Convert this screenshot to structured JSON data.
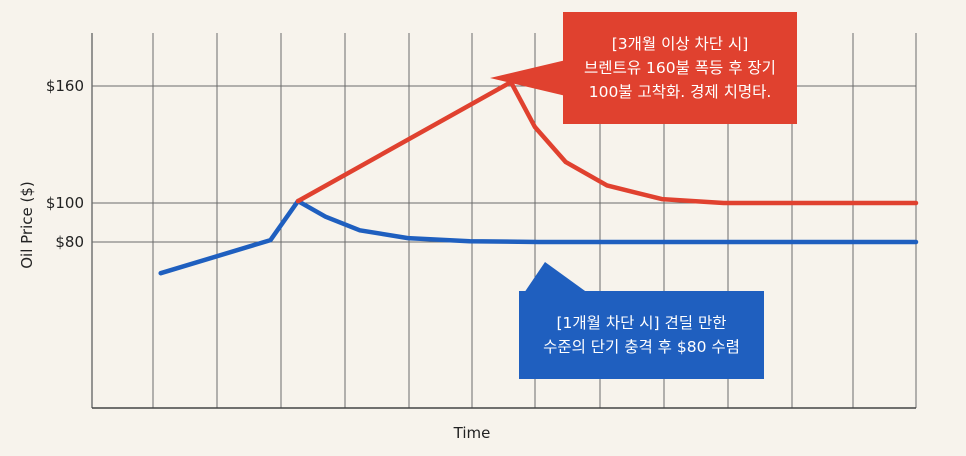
{
  "colors": {
    "red": "#e0412f",
    "blue": "#1f5fbf",
    "grid": "#6b6b6b",
    "background": "#f7f3ec"
  },
  "chart_data": {
    "type": "line",
    "title": "",
    "xlabel": "Time",
    "ylabel": "Oil Price ($)",
    "yticks": [
      {
        "value": 160,
        "label": "$160"
      },
      {
        "value": 100,
        "label": "$100"
      },
      {
        "value": 80,
        "label": "$80"
      }
    ],
    "ylim": [
      0,
      190
    ],
    "xlim": [
      0,
      12
    ],
    "grid": true,
    "legend": "none",
    "series": [
      {
        "color": "#1f5fbf",
        "points": [
          [
            1,
            64
          ],
          [
            2.6,
            81
          ],
          [
            3,
            101
          ],
          [
            3.4,
            93
          ],
          [
            3.9,
            86
          ],
          [
            4.6,
            82
          ],
          [
            5.5,
            80.4
          ],
          [
            6.5,
            80
          ],
          [
            12,
            80
          ]
        ]
      },
      {
        "color": "#e0412f",
        "points": [
          [
            3,
            101
          ],
          [
            6.1,
            162
          ],
          [
            6.45,
            139
          ],
          [
            6.9,
            121
          ],
          [
            7.5,
            109
          ],
          [
            8.3,
            102
          ],
          [
            9.2,
            100
          ],
          [
            12,
            100
          ]
        ]
      }
    ],
    "annotations": [
      {
        "text": "[3개월 이상 차단 시]\n브렌트유 160불 폭등 후 장기\n100불 고착화. 경제 치명타.",
        "color": "#e0412f"
      },
      {
        "text": "[1개월 차단 시] 견딜 만한\n수준의 단기 충격 후 $80 수렴",
        "color": "#1f5fbf"
      }
    ]
  }
}
